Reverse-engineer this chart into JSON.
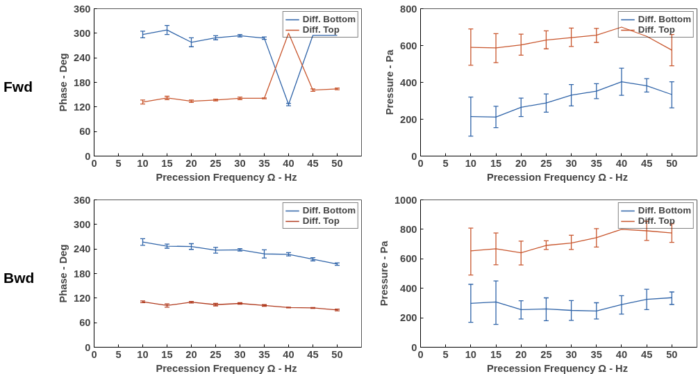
{
  "chart_data": [
    {
      "type": "line",
      "annotations": [
        "Fwd"
      ],
      "xlabel": "Precession Frequency  Ω - Hz",
      "ylabel": "Phase - Deg",
      "x": [
        10,
        15,
        20,
        25,
        30,
        35,
        40,
        45,
        50
      ],
      "xlim": [
        0,
        55
      ],
      "xticks": [
        0,
        5,
        10,
        15,
        20,
        25,
        30,
        35,
        40,
        45,
        50
      ],
      "ylim": [
        0,
        360
      ],
      "yticks": [
        0,
        60,
        120,
        180,
        240,
        300,
        360
      ],
      "legend": "top right",
      "series": [
        {
          "name": "Diff. Bottom",
          "color": "#2e63a8",
          "values": [
            297,
            308,
            278,
            289,
            294,
            288,
            126,
            295,
            295
          ],
          "errors": [
            8,
            11,
            11,
            5,
            3,
            3,
            3,
            null,
            null
          ]
        },
        {
          "name": "Diff. Top",
          "color": "#c8552c",
          "values": [
            132,
            142,
            134,
            137,
            141,
            141,
            300,
            161,
            164
          ],
          "errors": [
            5,
            4,
            3,
            2,
            3,
            1,
            null,
            3,
            2
          ]
        }
      ]
    },
    {
      "type": "line",
      "xlabel": "Precession Frequency  Ω - Hz",
      "ylabel": "Pressure - Pa",
      "x": [
        10,
        15,
        20,
        25,
        30,
        35,
        40,
        45,
        50
      ],
      "xlim": [
        0,
        55
      ],
      "xticks": [
        0,
        5,
        10,
        15,
        20,
        25,
        30,
        35,
        40,
        45,
        50
      ],
      "ylim": [
        0,
        800
      ],
      "yticks": [
        0,
        200,
        400,
        600,
        800
      ],
      "legend": "top right",
      "series": [
        {
          "name": "Diff. Bottom",
          "color": "#2e63a8",
          "values": [
            215,
            212,
            265,
            288,
            331,
            352,
            403,
            382,
            334
          ],
          "errors": [
            [
              108,
              320
            ],
            [
              154,
              270
            ],
            [
              215,
              315
            ],
            [
              238,
              337
            ],
            [
              272,
              388
            ],
            [
              312,
              393
            ],
            [
              330,
              477
            ],
            [
              348,
              420
            ],
            [
              262,
              403
            ]
          ]
        },
        {
          "name": "Diff. Top",
          "color": "#c8552c",
          "values": [
            590,
            587,
            603,
            630,
            643,
            656,
            700,
            650,
            575
          ],
          "errors": [
            [
              493,
              690
            ],
            [
              507,
              665
            ],
            [
              548,
              662
            ],
            [
              582,
              680
            ],
            [
              595,
              695
            ],
            [
              617,
              693
            ],
            null,
            null,
            85
          ]
        }
      ]
    },
    {
      "type": "line",
      "annotations": [
        "Bwd"
      ],
      "xlabel": "Precession Frequency  Ω - Hz",
      "ylabel": "Phase - Deg",
      "x": [
        10,
        15,
        20,
        25,
        30,
        35,
        40,
        45,
        50
      ],
      "xlim": [
        0,
        55
      ],
      "xticks": [
        0,
        5,
        10,
        15,
        20,
        25,
        30,
        35,
        40,
        45,
        50
      ],
      "ylim": [
        0,
        360
      ],
      "yticks": [
        0,
        60,
        120,
        180,
        240,
        300,
        360
      ],
      "legend": "top right",
      "series": [
        {
          "name": "Diff. Bottom",
          "color": "#2e63a8",
          "values": [
            257,
            247,
            246,
            237,
            238,
            228,
            227,
            215,
            203
          ],
          "errors": [
            8,
            5,
            7,
            7,
            3,
            10,
            4,
            4,
            3
          ]
        },
        {
          "name": "Diff. Top",
          "color": "#b03a1e",
          "values": [
            111,
            102,
            110,
            104,
            107,
            102,
            97,
            96,
            91
          ],
          "errors": [
            2,
            4,
            2,
            3,
            2,
            2,
            1,
            1,
            2
          ]
        }
      ]
    },
    {
      "type": "line",
      "xlabel": "Precession Frequency  Ω - Hz",
      "ylabel": "Pressure - Pa",
      "x": [
        10,
        15,
        20,
        25,
        30,
        35,
        40,
        45,
        50
      ],
      "xlim": [
        0,
        55
      ],
      "xticks": [
        0,
        5,
        10,
        15,
        20,
        25,
        30,
        35,
        40,
        45,
        50
      ],
      "ylim": [
        0,
        1000
      ],
      "yticks": [
        0,
        200,
        400,
        600,
        800,
        1000
      ],
      "legend": "top right",
      "series": [
        {
          "name": "Diff. Bottom",
          "color": "#2e63a8",
          "values": [
            298,
            307,
            255,
            260,
            250,
            246,
            290,
            325,
            336
          ],
          "errors": [
            [
              169,
              427
            ],
            [
              155,
              450
            ],
            [
              192,
              315
            ],
            [
              180,
              335
            ],
            [
              182,
              317
            ],
            [
              192,
              302
            ],
            [
              225,
              350
            ],
            [
              255,
              393
            ],
            [
              290,
              375
            ]
          ]
        },
        {
          "name": "Diff. Top",
          "color": "#c8552c",
          "values": [
            654,
            668,
            641,
            691,
            707,
            744,
            800,
            790,
            775
          ],
          "errors": [
            [
              490,
              808
            ],
            [
              560,
              775
            ],
            [
              558,
              720
            ],
            [
              663,
              722
            ],
            [
              663,
              760
            ],
            [
              680,
              805
            ],
            null,
            [
              725,
              855
            ],
            [
              712,
              838
            ]
          ]
        }
      ]
    }
  ]
}
